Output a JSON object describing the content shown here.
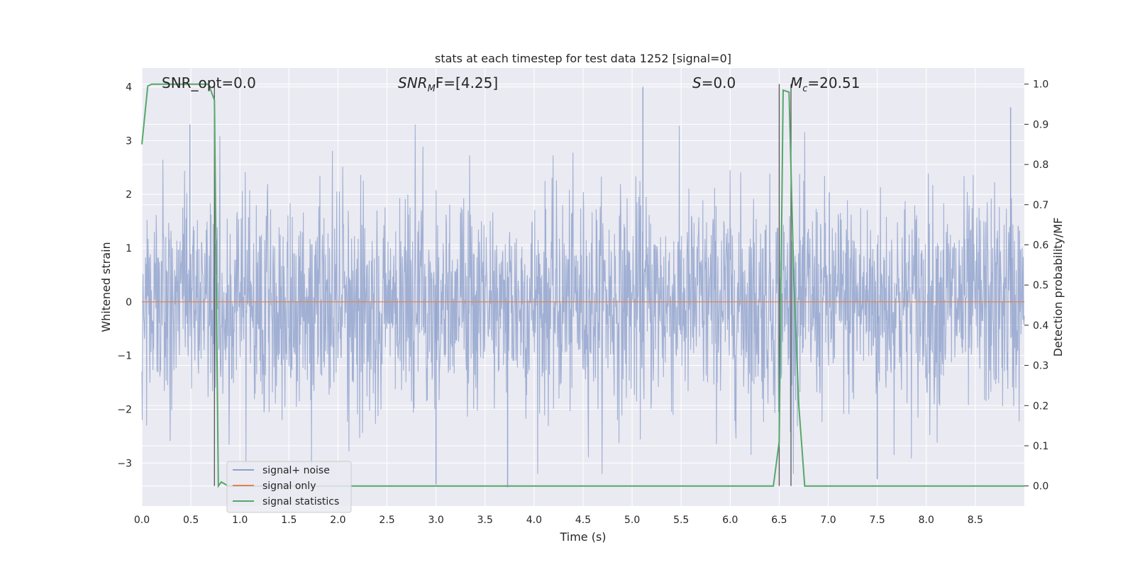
{
  "chart_data": {
    "type": "line",
    "title": "stats at each timestep for test data 1252 [signal=0]",
    "xlabel": "Time (s)",
    "ylabel_left": "Whitened strain",
    "ylabel_right": "Detection probability/MF",
    "xlim": [
      0.0,
      9.0
    ],
    "ylim_left": [
      -3.8,
      4.35
    ],
    "ylim_right": [
      -0.05,
      1.04
    ],
    "grid": true,
    "legend_position": "lower-left",
    "x_ticks": [
      "0.0",
      "0.5",
      "1.0",
      "1.5",
      "2.0",
      "2.5",
      "3.0",
      "3.5",
      "4.0",
      "4.5",
      "5.0",
      "5.5",
      "6.0",
      "6.5",
      "7.0",
      "7.5",
      "8.0",
      "8.5"
    ],
    "y_ticks_left": [
      "−3",
      "−2",
      "−1",
      "0",
      "1",
      "2",
      "3",
      "4"
    ],
    "y_ticks_right": [
      "0.0",
      "0.1",
      "0.2",
      "0.3",
      "0.4",
      "0.5",
      "0.6",
      "0.7",
      "0.8",
      "0.9",
      "1.0"
    ],
    "annotations": {
      "snr_opt": "SNR_opt=0.0",
      "snr_mf_base": "SNR",
      "snr_mf_sub": "M",
      "snr_mf_rest": "F=[4.25]",
      "s_italic": "S",
      "s_rest": "=0.0",
      "mc_base": "M",
      "mc_sub": "c",
      "mc_rest": "=20.51"
    },
    "series": [
      {
        "name": "signal+ noise",
        "color": "#8da0cb",
        "axis": "left",
        "description_values": "white-noise strain, approx. std 1, range about -3.5 to 4.0",
        "peak_values": [
          [
            0.49,
            3.3
          ],
          [
            5.11,
            4.0
          ],
          [
            8.86,
            3.62
          ],
          [
            3.0,
            -3.4
          ],
          [
            7.5,
            -3.3
          ],
          [
            3.73,
            -3.45
          ]
        ]
      },
      {
        "name": "signal only",
        "color": "#dd8452",
        "axis": "left",
        "x": [
          0.0,
          9.0
        ],
        "y": [
          0.0,
          0.0
        ]
      },
      {
        "name": "signal statistics",
        "color": "#55a868",
        "axis": "right",
        "x": [
          0.0,
          0.06,
          0.1,
          0.2,
          0.4,
          0.6,
          0.68,
          0.74,
          0.78,
          0.81,
          0.88,
          0.94,
          1.0,
          2.0,
          3.0,
          4.0,
          5.0,
          6.0,
          6.44,
          6.5,
          6.54,
          6.6,
          6.65,
          6.7,
          6.76,
          6.8,
          7.0,
          8.0,
          9.0
        ],
        "y": [
          0.85,
          0.995,
          1.0,
          1.0,
          1.0,
          1.0,
          1.0,
          0.96,
          0.0,
          0.01,
          0.0,
          0.0,
          0.0,
          0.0,
          0.0,
          0.0,
          0.0,
          0.0,
          0.0,
          0.11,
          0.985,
          0.98,
          0.5,
          0.2,
          0.0,
          0.0,
          0.0,
          0.0,
          0.0
        ]
      }
    ],
    "vertical_markers": [
      {
        "x": 0.74,
        "y_top": 1.0
      },
      {
        "x": 6.5,
        "y_top": 1.0
      },
      {
        "x": 6.62,
        "y_top": 1.0
      }
    ]
  }
}
